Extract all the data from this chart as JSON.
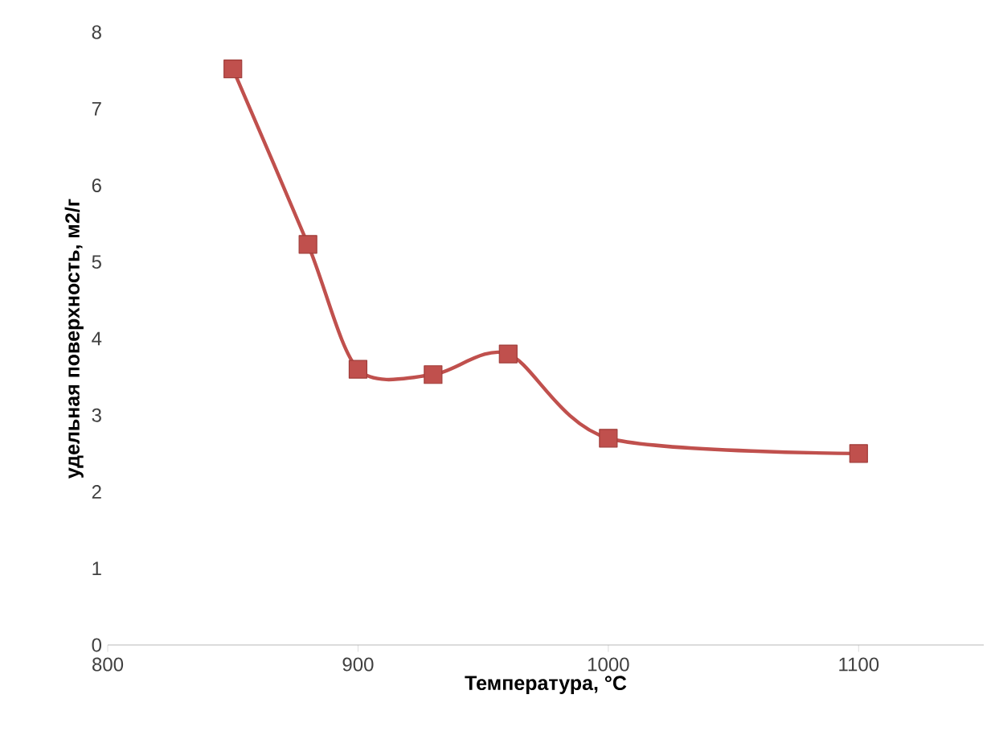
{
  "chart_data": {
    "type": "line",
    "xlabel": "Температура, °С",
    "ylabel": "удельная поверхность, м2/г",
    "x": [
      850,
      880,
      900,
      930,
      960,
      1000,
      1100
    ],
    "series": [
      {
        "color": "#c0504d",
        "values": [
          7.52,
          5.23,
          3.6,
          3.53,
          3.8,
          2.7,
          2.5
        ]
      }
    ],
    "xlim": [
      800,
      1150
    ],
    "ylim": [
      0,
      8
    ],
    "xticks": [
      800,
      900,
      1000,
      1100
    ],
    "yticks": [
      0,
      1,
      2,
      3,
      4,
      5,
      6,
      7,
      8
    ],
    "marker": "square",
    "line_style": "solid"
  }
}
